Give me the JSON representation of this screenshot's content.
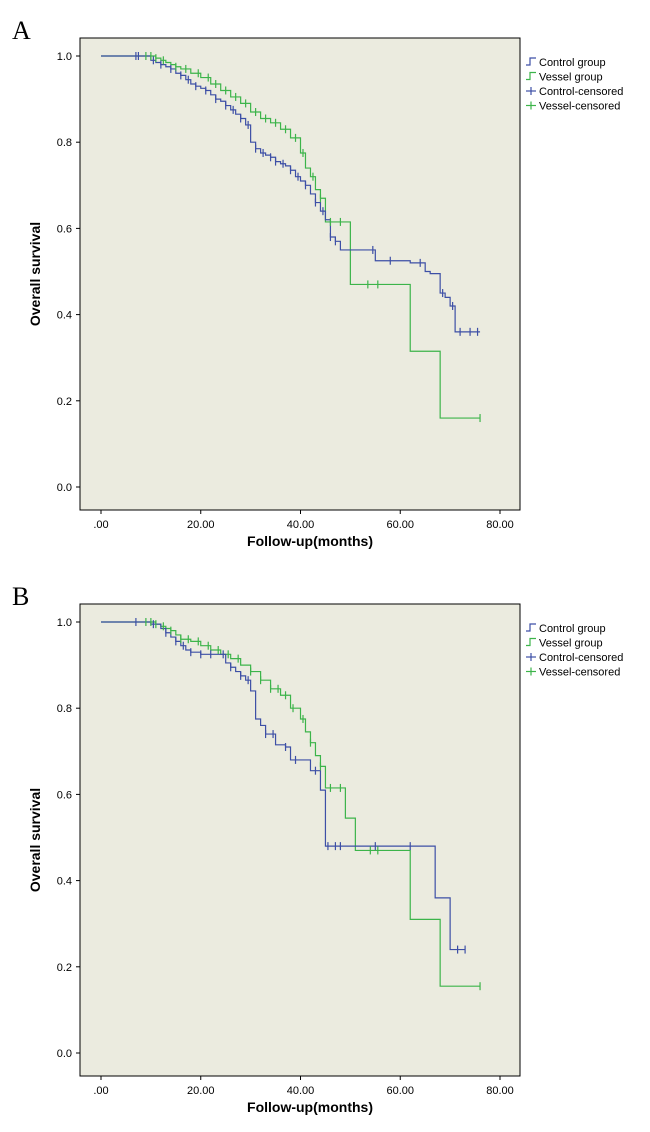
{
  "chart_data": [
    {
      "type": "line",
      "panel_label": "A",
      "xlabel": "Follow-up(months)",
      "ylabel": "Overall survival",
      "xlim": [
        0,
        80
      ],
      "ylim": [
        0,
        1.0
      ],
      "x_ticks": [
        ".00",
        "20.00",
        "40.00",
        "60.00",
        "80.00"
      ],
      "y_ticks": [
        "0.0",
        "0.2",
        "0.4",
        "0.6",
        "0.8",
        "1.0"
      ],
      "legend": [
        "Control group",
        "Vessel group",
        "Control-censored",
        "Vessel-censored"
      ],
      "series": [
        {
          "name": "Control group",
          "color": "#3d4fa6",
          "step_x": [
            0,
            7,
            10,
            11,
            12,
            13,
            14,
            15,
            16,
            17,
            18,
            19,
            20,
            21,
            22,
            23,
            24,
            25,
            26,
            27,
            28,
            29,
            30,
            31,
            32,
            33,
            34,
            35,
            36,
            37,
            38,
            39,
            40,
            41,
            42,
            43,
            44,
            45,
            46,
            47,
            48,
            55,
            62,
            65,
            66,
            68,
            69,
            70,
            71,
            72,
            76
          ],
          "step_y": [
            1.0,
            1.0,
            0.99,
            0.985,
            0.98,
            0.975,
            0.97,
            0.96,
            0.955,
            0.945,
            0.935,
            0.93,
            0.925,
            0.92,
            0.91,
            0.9,
            0.895,
            0.885,
            0.875,
            0.865,
            0.855,
            0.84,
            0.8,
            0.785,
            0.775,
            0.77,
            0.765,
            0.755,
            0.75,
            0.745,
            0.735,
            0.72,
            0.71,
            0.7,
            0.68,
            0.66,
            0.64,
            0.62,
            0.58,
            0.57,
            0.55,
            0.525,
            0.52,
            0.5,
            0.495,
            0.45,
            0.44,
            0.42,
            0.36,
            0.36,
            0.36
          ],
          "censor_x": [
            7,
            7.5,
            10.5,
            12,
            14,
            16,
            17.5,
            19,
            21,
            23,
            25,
            26.5,
            28,
            29.5,
            31,
            32.5,
            34,
            35,
            36.5,
            38,
            39.5,
            41,
            43,
            44.5,
            46,
            47,
            54.5,
            58,
            64,
            68.5,
            70.5,
            72,
            74,
            75.5
          ]
        },
        {
          "name": "Vessel group",
          "color": "#3cb44a",
          "step_x": [
            0,
            9,
            11,
            12,
            13,
            14,
            15,
            16,
            18,
            20,
            22,
            24,
            26,
            28,
            30,
            32,
            34,
            36,
            38,
            40,
            41,
            42,
            43,
            44,
            45,
            50,
            55,
            62,
            68,
            76
          ],
          "step_y": [
            1.0,
            1.0,
            0.995,
            0.99,
            0.985,
            0.98,
            0.975,
            0.97,
            0.96,
            0.95,
            0.935,
            0.92,
            0.905,
            0.89,
            0.87,
            0.855,
            0.845,
            0.83,
            0.81,
            0.775,
            0.74,
            0.72,
            0.69,
            0.67,
            0.615,
            0.47,
            0.47,
            0.315,
            0.16,
            0.16
          ],
          "censor_x": [
            9,
            10,
            11,
            12.5,
            15,
            17,
            19.5,
            21.5,
            23,
            25,
            27,
            29,
            31,
            33,
            35,
            37,
            39,
            40.5,
            42.5,
            44,
            46,
            48,
            53.5,
            55.5,
            76
          ]
        }
      ]
    },
    {
      "type": "line",
      "panel_label": "B",
      "xlabel": "Follow-up(months)",
      "ylabel": "Overall survival",
      "xlim": [
        0,
        80
      ],
      "ylim": [
        0,
        1.0
      ],
      "x_ticks": [
        ".00",
        "20.00",
        "40.00",
        "60.00",
        "80.00"
      ],
      "y_ticks": [
        "0.0",
        "0.2",
        "0.4",
        "0.6",
        "0.8",
        "1.0"
      ],
      "legend": [
        "Control group",
        "Vessel group",
        "Control-censored",
        "Vessel-censored"
      ],
      "series": [
        {
          "name": "Control group",
          "color": "#3d4fa6",
          "step_x": [
            0,
            7,
            10,
            12,
            13,
            14,
            15,
            16,
            17,
            18,
            19,
            20,
            25,
            26,
            27,
            28,
            29,
            30,
            31,
            32,
            33,
            35,
            37,
            38,
            40,
            42,
            44,
            45,
            62,
            67,
            70,
            73
          ],
          "step_y": [
            1.0,
            1.0,
            0.995,
            0.985,
            0.975,
            0.965,
            0.955,
            0.945,
            0.935,
            0.93,
            0.93,
            0.925,
            0.905,
            0.895,
            0.885,
            0.875,
            0.865,
            0.84,
            0.775,
            0.76,
            0.74,
            0.715,
            0.71,
            0.68,
            0.68,
            0.655,
            0.61,
            0.48,
            0.48,
            0.36,
            0.24,
            0.24
          ],
          "censor_x": [
            7,
            10.5,
            13,
            15,
            16.5,
            18,
            20,
            22,
            24.5,
            26,
            28,
            29.5,
            33,
            34.5,
            37,
            39,
            43,
            45.5,
            47,
            48,
            55,
            62,
            71.5,
            73
          ]
        },
        {
          "name": "Vessel group",
          "color": "#3cb44a",
          "step_x": [
            0,
            9,
            11,
            12,
            13,
            14,
            15,
            16,
            18,
            20,
            22,
            24,
            26,
            28,
            30,
            32,
            34,
            36,
            38,
            40,
            41,
            42,
            43,
            44,
            45,
            49,
            51,
            55,
            62,
            68,
            76
          ],
          "step_y": [
            1.0,
            1.0,
            0.995,
            0.99,
            0.985,
            0.98,
            0.97,
            0.96,
            0.955,
            0.945,
            0.935,
            0.925,
            0.915,
            0.9,
            0.885,
            0.865,
            0.845,
            0.83,
            0.8,
            0.775,
            0.745,
            0.72,
            0.69,
            0.665,
            0.615,
            0.545,
            0.47,
            0.47,
            0.31,
            0.155,
            0.155
          ],
          "censor_x": [
            9,
            10,
            11,
            12.5,
            14,
            16,
            17.5,
            19.5,
            21.5,
            23.5,
            25.5,
            27.5,
            30,
            32,
            34,
            35.5,
            37,
            38.5,
            40.5,
            42,
            44,
            46,
            48,
            54,
            55.5,
            76
          ]
        }
      ]
    }
  ]
}
